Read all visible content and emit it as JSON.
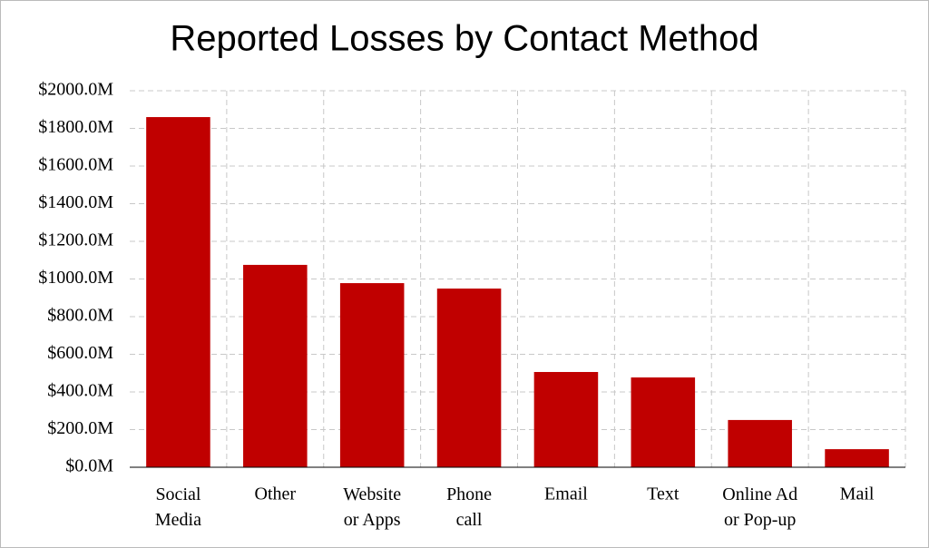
{
  "chart_data": {
    "type": "bar",
    "title": "Reported Losses by Contact Method",
    "categories": [
      "Social Media",
      "Other",
      "Website or Apps",
      "Phone call",
      "Email",
      "Text",
      "Online Ad or Pop-up",
      "Mail"
    ],
    "values": [
      1860,
      1075,
      978,
      949,
      506,
      477,
      251,
      96
    ],
    "color": "#c00000",
    "ylim": [
      0,
      2000
    ],
    "yticks": [
      {
        "value": 0,
        "label": "$0.0M"
      },
      {
        "value": 200,
        "label": "$200.0M"
      },
      {
        "value": 400,
        "label": "$400.0M"
      },
      {
        "value": 600,
        "label": "$600.0M"
      },
      {
        "value": 800,
        "label": "$800.0M"
      },
      {
        "value": 1000,
        "label": "$1000.0M"
      },
      {
        "value": 1200,
        "label": "$1200.0M"
      },
      {
        "value": 1400,
        "label": "$1400.0M"
      },
      {
        "value": 1600,
        "label": "$1600.0M"
      },
      {
        "value": 1800,
        "label": "$1800.0M"
      },
      {
        "value": 2000,
        "label": "$2000.0M"
      }
    ],
    "grid": true
  }
}
